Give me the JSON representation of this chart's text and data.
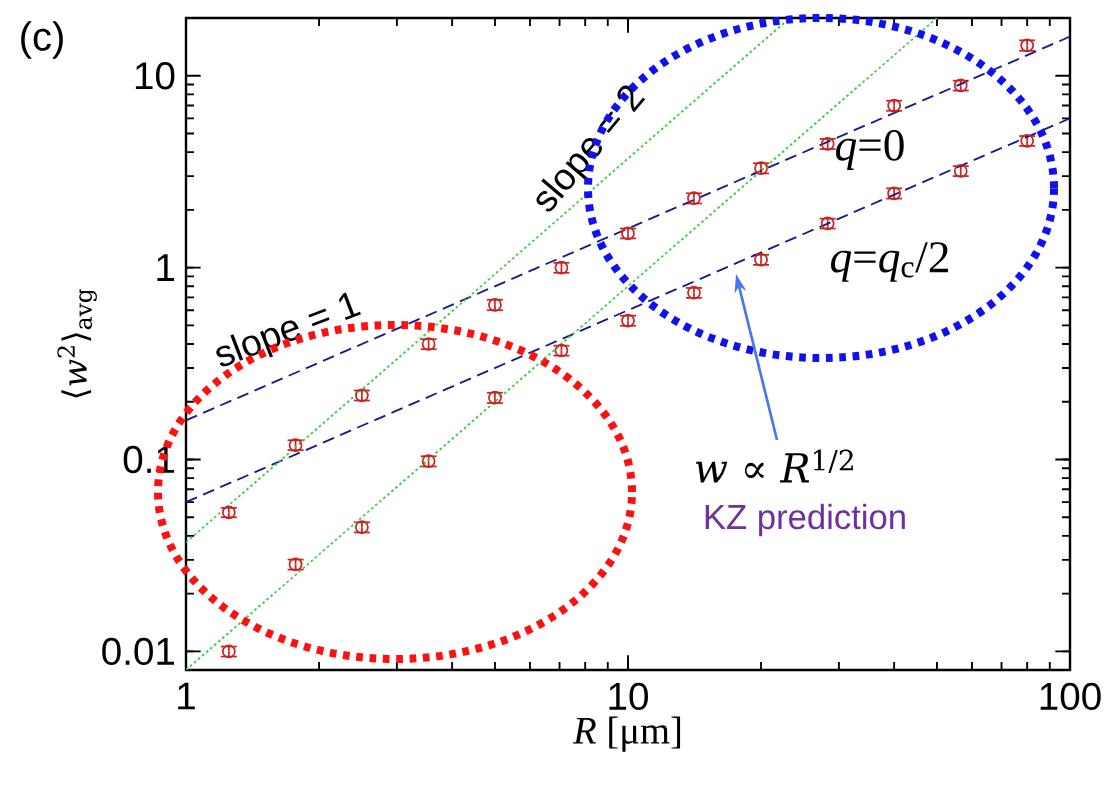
{
  "chart_data": {
    "type": "scatter",
    "title": "(c)",
    "xlabel": "*R* [μm]",
    "ylabel": "⟨*w*$^{2}$⟩$_{avg}$",
    "log": "xy",
    "x": [
      1.25,
      1.77,
      2.5,
      3.54,
      5,
      7.07,
      10,
      14.1,
      20,
      28.3,
      40,
      56.6,
      80
    ],
    "series": [
      {
        "name": "*q*=0",
        "color": "#cc2222",
        "marker": "circle",
        "values": [
          0.053,
          0.119,
          0.216,
          0.4,
          0.64,
          1.0,
          1.51,
          2.3,
          3.3,
          4.42,
          6.99,
          8.9,
          14.4
        ],
        "errors": [
          0.003,
          0.007,
          0.013,
          0.024,
          0.04,
          0.06,
          0.09,
          0.14,
          0.2,
          0.27,
          0.42,
          0.53,
          0.9
        ]
      },
      {
        "name": "*q*=*q*$_{c}$/2",
        "color": "#cc2222",
        "marker": "circle",
        "values": [
          0.01,
          0.0284,
          0.0444,
          0.098,
          0.21,
          0.37,
          0.53,
          0.74,
          1.1,
          1.7,
          2.44,
          3.19,
          4.58
        ],
        "errors": [
          0.0006,
          0.0017,
          0.0027,
          0.006,
          0.013,
          0.022,
          0.032,
          0.044,
          0.066,
          0.1,
          0.15,
          0.19,
          0.27
        ]
      },
      {
        "type": "line",
        "color": "#1a1a8c",
        "line_style": "dashed",
        "x": [
          1,
          100
        ],
        "values": [
          0.16,
          16
        ]
      },
      {
        "type": "line",
        "color": "#1a1a8c",
        "line_style": "dashed",
        "x": [
          1,
          100
        ],
        "values": [
          0.06,
          6
        ]
      },
      {
        "type": "line",
        "color": "#44cc44",
        "line_style": "dotted",
        "x": [
          1,
          23
        ],
        "values": [
          0.037,
          19.6
        ]
      },
      {
        "type": "line",
        "color": "#44cc44",
        "line_style": "dotted",
        "x": [
          1,
          50
        ],
        "values": [
          0.008,
          20
        ]
      }
    ],
    "xlim": [
      1,
      100
    ],
    "xticks": [
      1,
      10,
      100
    ],
    "ylim": [
      0.008,
      20
    ],
    "yticks": [
      0.01,
      0.1,
      1,
      10
    ],
    "annotations": [
      "slope = 1",
      "slope = 2",
      "*w* ∝ *R*$^{1/2}$",
      "KZ prediction"
    ]
  }
}
